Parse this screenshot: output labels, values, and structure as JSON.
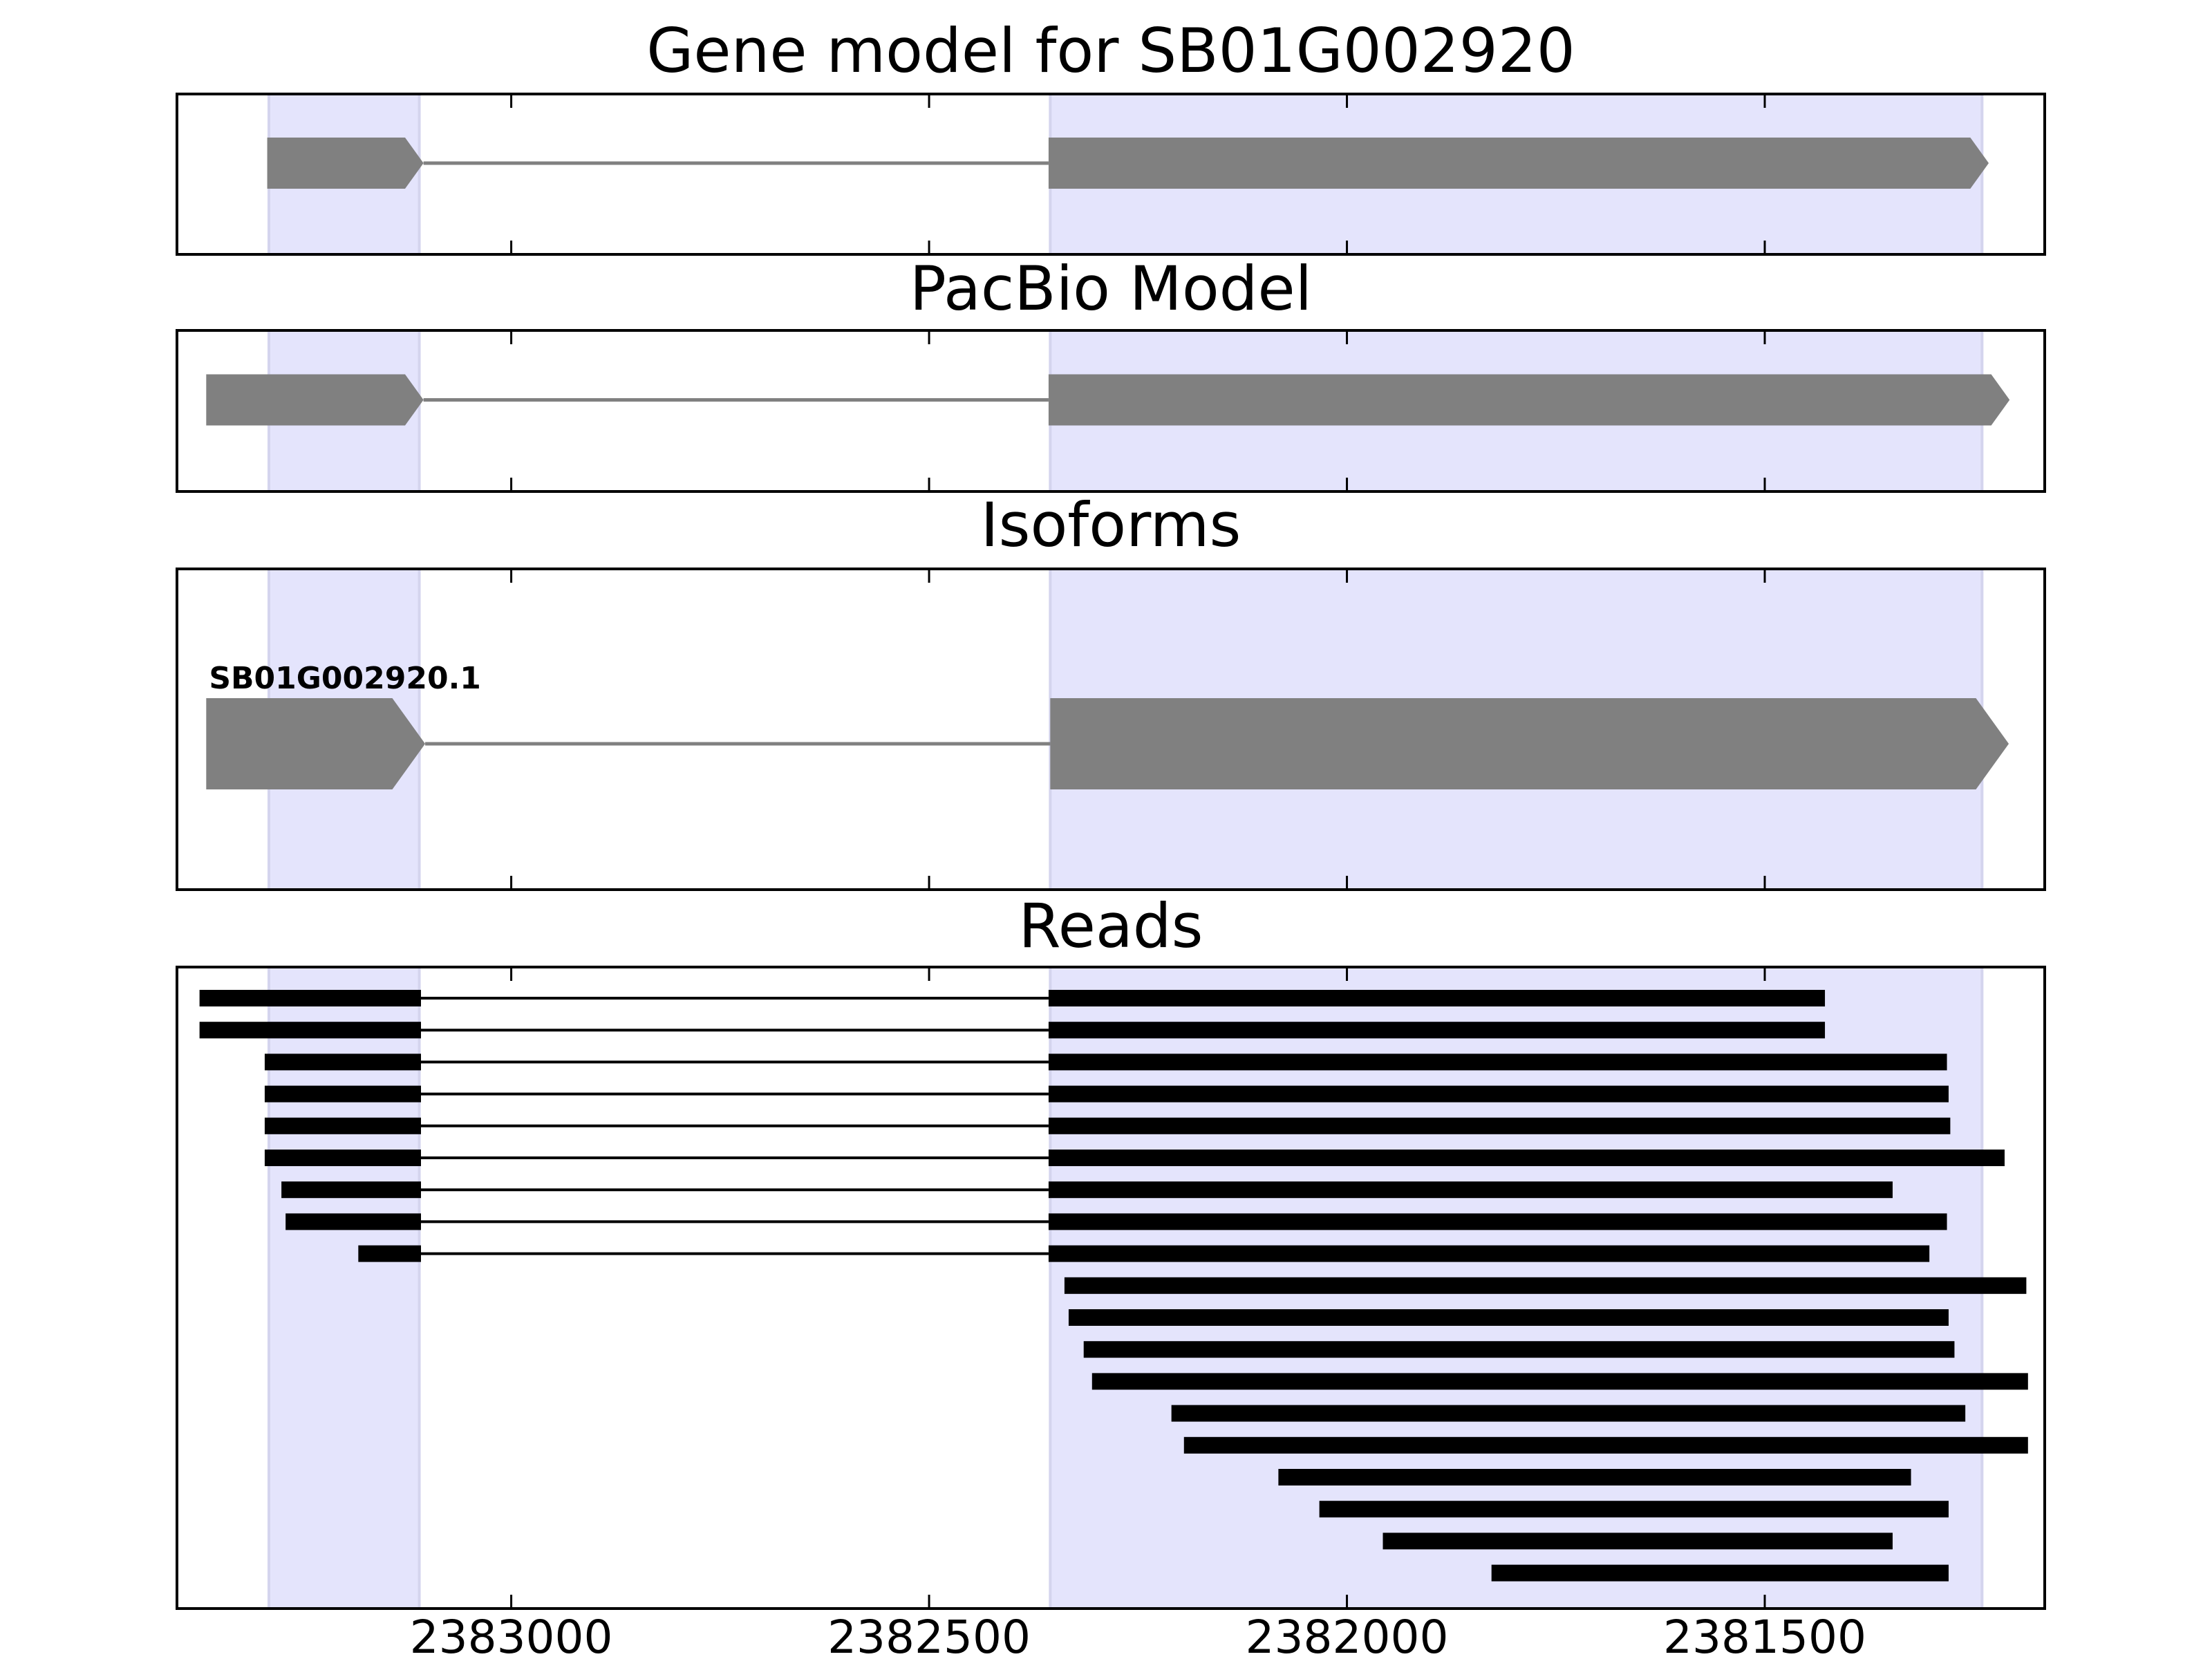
{
  "chart_data": {
    "type": "gene-track",
    "x_axis": {
      "reversed": true,
      "xlim": [
        2383400,
        2381165
      ],
      "ticks": [
        2383000,
        2382500,
        2382000,
        2381500
      ],
      "tick_labels": [
        "2383000",
        "2382500",
        "2382000",
        "2381500"
      ]
    },
    "highlight_regions": [
      {
        "start": 2383290,
        "end": 2383110
      },
      {
        "start": 2382355,
        "end": 2381240
      }
    ],
    "panels": [
      {
        "id": "gene-model",
        "title": "Gene model for SB01G002920",
        "tracks": [
          {
            "label": "",
            "exons": [
              [
                2383292,
                2383105
              ],
              [
                2382357,
                2381232
              ]
            ],
            "strand": "-"
          }
        ]
      },
      {
        "id": "pacbio-model",
        "title": "PacBio Model",
        "tracks": [
          {
            "label": "",
            "exons": [
              [
                2383365,
                2383105
              ],
              [
                2382357,
                2381207
              ]
            ],
            "strand": "-"
          }
        ]
      },
      {
        "id": "isoforms",
        "title": "Isoforms",
        "tracks": [
          {
            "label": "SB01G002920.1",
            "exons": [
              [
                2383365,
                2383103
              ],
              [
                2382355,
                2381208
              ]
            ],
            "strand": "-"
          }
        ]
      },
      {
        "id": "reads",
        "title": "Reads",
        "reads": [
          [
            [
              2383373,
              2383108
            ],
            [
              2382357,
              2381428
            ]
          ],
          [
            [
              2383373,
              2383108
            ],
            [
              2382357,
              2381428
            ]
          ],
          [
            [
              2383295,
              2383108
            ],
            [
              2382357,
              2381282
            ]
          ],
          [
            [
              2383295,
              2383108
            ],
            [
              2382357,
              2381280
            ]
          ],
          [
            [
              2383295,
              2383108
            ],
            [
              2382357,
              2381278
            ]
          ],
          [
            [
              2383295,
              2383108
            ],
            [
              2382357,
              2381213
            ]
          ],
          [
            [
              2383275,
              2383108
            ],
            [
              2382357,
              2381347
            ]
          ],
          [
            [
              2383270,
              2383108
            ],
            [
              2382357,
              2381282
            ]
          ],
          [
            [
              2383183,
              2383108
            ],
            [
              2382357,
              2381303
            ]
          ],
          [
            [
              2382338,
              2381187
            ]
          ],
          [
            [
              2382333,
              2381280
            ]
          ],
          [
            [
              2382315,
              2381273
            ]
          ],
          [
            [
              2382305,
              2381185
            ]
          ],
          [
            [
              2382210,
              2381260
            ]
          ],
          [
            [
              2382195,
              2381185
            ]
          ],
          [
            [
              2382082,
              2381325
            ]
          ],
          [
            [
              2382033,
              2381280
            ]
          ],
          [
            [
              2381957,
              2381347
            ]
          ],
          [
            [
              2381827,
              2381280
            ]
          ]
        ]
      }
    ],
    "colors": {
      "highlight": "#e4e4fc",
      "highlight_edge": "#d4d4ee",
      "exon": "#808080",
      "intron": "#808080",
      "read": "#000000",
      "frame": "#000000"
    }
  }
}
